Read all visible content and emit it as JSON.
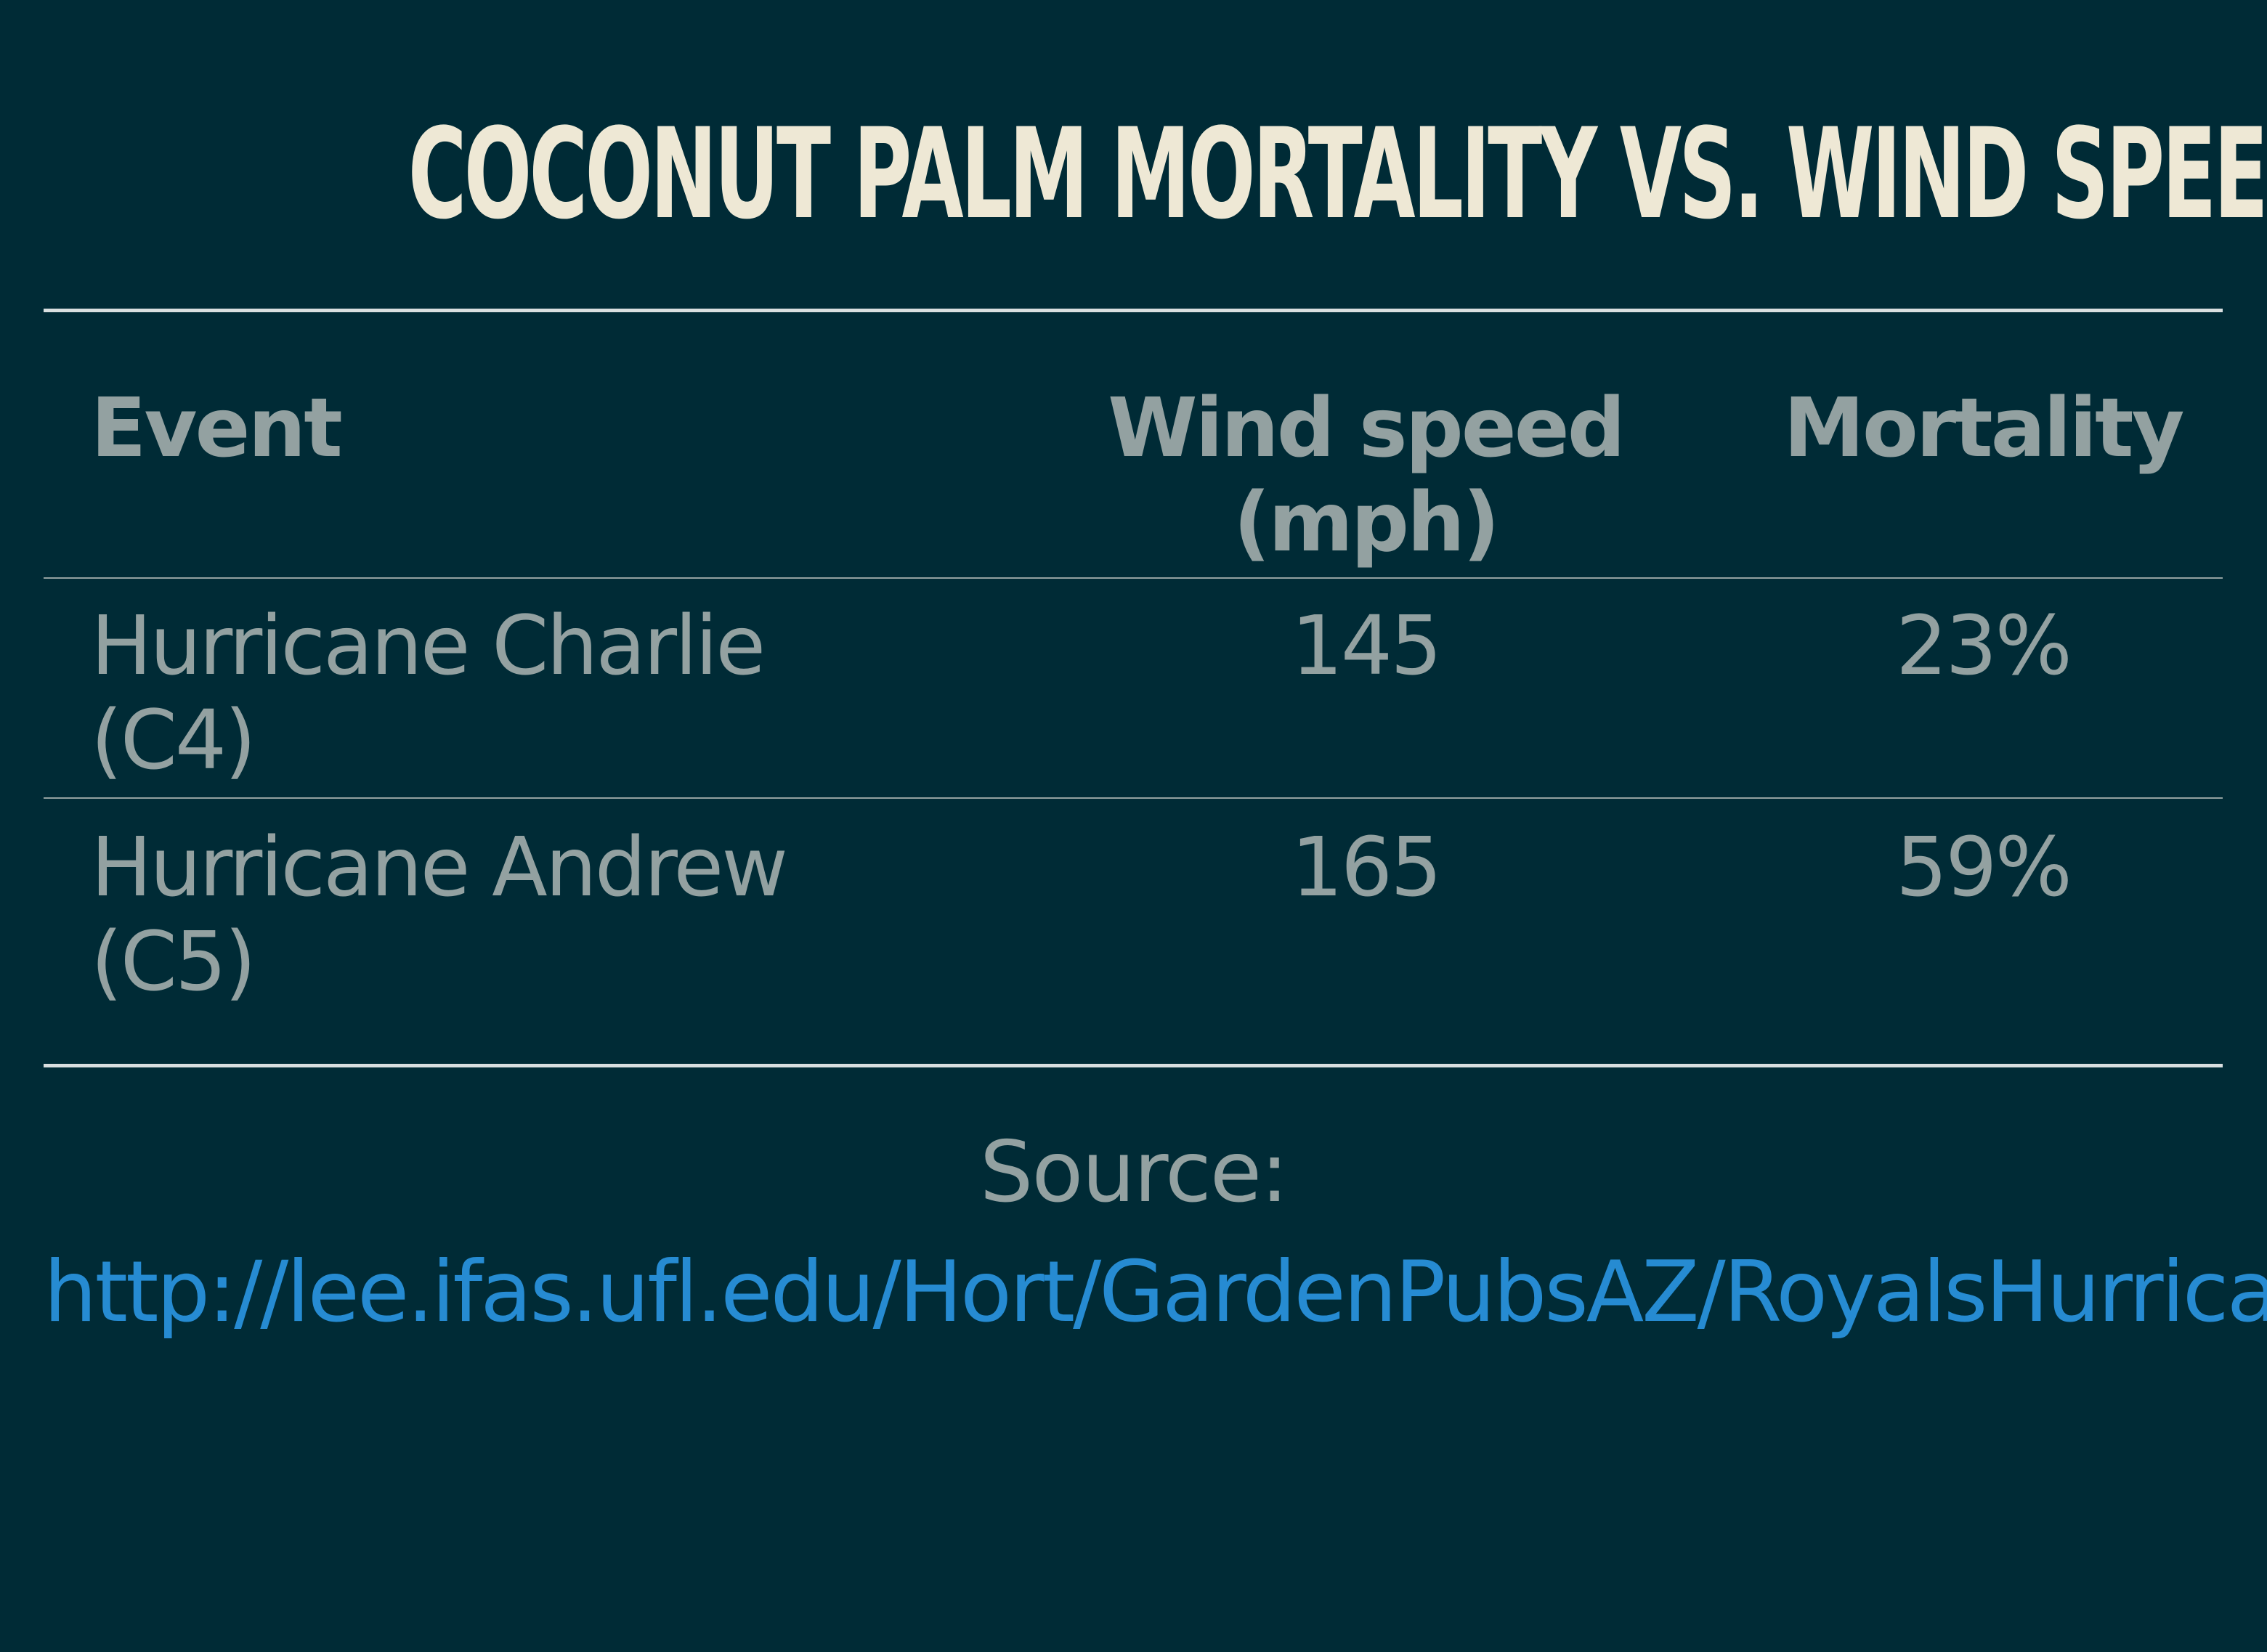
{
  "slide": {
    "title": "COCONUT PALM MORTALITY VS. WIND SPEED"
  },
  "table": {
    "headers": {
      "event": "Event",
      "wind_speed_line1": "Wind speed",
      "wind_speed_line2": "(mph)",
      "mortality": "Mortality"
    },
    "rows": [
      {
        "event_line1": "Hurricane Charlie",
        "event_line2": "(C4)",
        "wind_speed": "145",
        "mortality": "23%"
      },
      {
        "event_line1": "Hurricane Andrew",
        "event_line2": "(C5)",
        "wind_speed": "165",
        "mortality": "59%"
      }
    ]
  },
  "source": {
    "label": "Source:",
    "link_text": "http://lee.ifas.ufl.edu/Hort/GardenPubsAZ/RoyalsHurricanes.pdf"
  },
  "colors": {
    "background": "#002b36",
    "title": "#eee8d5",
    "text": "#93a1a1",
    "link": "#268bd2"
  }
}
